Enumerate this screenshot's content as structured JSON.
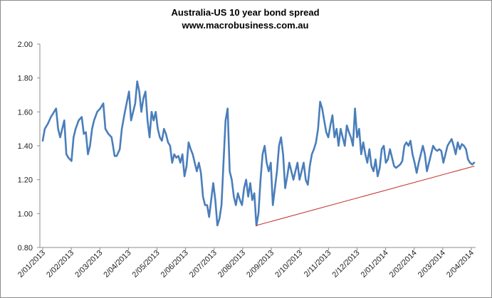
{
  "chart_data": {
    "type": "line",
    "title": "Australia-US 10 year bond spread",
    "subtitle": "www.macrobusiness.com.au",
    "xlabel": "",
    "ylabel": "",
    "ylim": [
      0.8,
      2.0
    ],
    "yticks": [
      "0.80",
      "1.00",
      "1.20",
      "1.40",
      "1.60",
      "1.80",
      "2.00"
    ],
    "ytick_values": [
      0.8,
      1.0,
      1.2,
      1.4,
      1.6,
      1.8,
      2.0
    ],
    "categories": [
      "2/01/2013",
      "2/02/2013",
      "2/03/2013",
      "2/04/2013",
      "2/05/2013",
      "2/06/2013",
      "2/07/2013",
      "2/08/2013",
      "2/09/2013",
      "2/10/2013",
      "2/11/2013",
      "2/12/2013",
      "2/01/2014",
      "2/02/2014",
      "2/03/2014",
      "2/04/2014"
    ],
    "grid": false,
    "legend": "none",
    "series": [
      {
        "name": "Australia-US 10 year bond spread",
        "color": "#4a7ebb",
        "values": [
          [
            0.0,
            1.43
          ],
          [
            0.2,
            1.5
          ],
          [
            0.5,
            1.53
          ],
          [
            0.8,
            1.57
          ],
          [
            1.1,
            1.6
          ],
          [
            1.3,
            1.62
          ],
          [
            1.5,
            1.5
          ],
          [
            1.7,
            1.45
          ],
          [
            1.9,
            1.5
          ],
          [
            2.1,
            1.55
          ],
          [
            2.3,
            1.35
          ],
          [
            2.5,
            1.33
          ],
          [
            2.8,
            1.31
          ],
          [
            3.0,
            1.45
          ],
          [
            3.2,
            1.5
          ],
          [
            3.5,
            1.55
          ],
          [
            3.8,
            1.57
          ],
          [
            4.0,
            1.47
          ],
          [
            4.2,
            1.48
          ],
          [
            4.4,
            1.35
          ],
          [
            4.6,
            1.4
          ],
          [
            4.8,
            1.5
          ],
          [
            5.0,
            1.55
          ],
          [
            5.3,
            1.6
          ],
          [
            5.6,
            1.62
          ],
          [
            5.9,
            1.65
          ],
          [
            6.1,
            1.5
          ],
          [
            6.4,
            1.47
          ],
          [
            6.7,
            1.45
          ],
          [
            7.0,
            1.34
          ],
          [
            7.2,
            1.34
          ],
          [
            7.5,
            1.38
          ],
          [
            7.7,
            1.5
          ],
          [
            8.0,
            1.6
          ],
          [
            8.2,
            1.66
          ],
          [
            8.4,
            1.72
          ],
          [
            8.6,
            1.55
          ],
          [
            8.8,
            1.6
          ],
          [
            9.0,
            1.65
          ],
          [
            9.2,
            1.78
          ],
          [
            9.4,
            1.72
          ],
          [
            9.6,
            1.6
          ],
          [
            9.8,
            1.68
          ],
          [
            10.0,
            1.72
          ],
          [
            10.2,
            1.55
          ],
          [
            10.4,
            1.45
          ],
          [
            10.6,
            1.6
          ],
          [
            10.8,
            1.55
          ],
          [
            11.0,
            1.6
          ],
          [
            11.2,
            1.5
          ],
          [
            11.4,
            1.45
          ],
          [
            11.6,
            1.43
          ],
          [
            11.8,
            1.5
          ],
          [
            12.0,
            1.47
          ],
          [
            12.2,
            1.42
          ],
          [
            12.4,
            1.4
          ],
          [
            12.6,
            1.3
          ],
          [
            12.8,
            1.35
          ],
          [
            13.0,
            1.33
          ],
          [
            13.2,
            1.34
          ],
          [
            13.4,
            1.3
          ],
          [
            13.6,
            1.35
          ],
          [
            13.8,
            1.22
          ],
          [
            14.0,
            1.28
          ],
          [
            14.2,
            1.42
          ],
          [
            14.4,
            1.38
          ],
          [
            14.6,
            1.35
          ],
          [
            14.8,
            1.3
          ],
          [
            15.0,
            1.25
          ],
          [
            15.2,
            1.3
          ],
          [
            15.4,
            1.24
          ],
          [
            15.6,
            1.1
          ],
          [
            15.8,
            1.05
          ],
          [
            16.0,
            1.05
          ],
          [
            16.2,
            0.98
          ],
          [
            16.4,
            1.08
          ],
          [
            16.6,
            1.18
          ],
          [
            16.8,
            1.08
          ],
          [
            17.0,
            0.93
          ],
          [
            17.2,
            0.97
          ],
          [
            17.4,
            1.05
          ],
          [
            17.6,
            1.3
          ],
          [
            17.8,
            1.55
          ],
          [
            18.0,
            1.62
          ],
          [
            18.2,
            1.25
          ],
          [
            18.4,
            1.2
          ],
          [
            18.6,
            1.1
          ],
          [
            18.8,
            1.05
          ],
          [
            19.0,
            1.12
          ],
          [
            19.2,
            1.08
          ],
          [
            19.4,
            1.05
          ],
          [
            19.6,
            1.15
          ],
          [
            19.8,
            1.2
          ],
          [
            20.0,
            1.1
          ],
          [
            20.2,
            1.18
          ],
          [
            20.4,
            1.08
          ],
          [
            20.6,
            1.12
          ],
          [
            20.8,
            0.93
          ],
          [
            21.0,
            1.0
          ],
          [
            21.2,
            1.2
          ],
          [
            21.4,
            1.35
          ],
          [
            21.6,
            1.4
          ],
          [
            21.8,
            1.3
          ],
          [
            22.0,
            1.25
          ],
          [
            22.2,
            1.3
          ],
          [
            22.4,
            1.05
          ],
          [
            22.6,
            1.15
          ],
          [
            22.8,
            1.25
          ],
          [
            23.0,
            1.4
          ],
          [
            23.2,
            1.45
          ],
          [
            23.4,
            1.35
          ],
          [
            23.6,
            1.15
          ],
          [
            23.8,
            1.22
          ],
          [
            24.0,
            1.3
          ],
          [
            24.2,
            1.25
          ],
          [
            24.4,
            1.2
          ],
          [
            24.6,
            1.25
          ],
          [
            24.8,
            1.3
          ],
          [
            25.0,
            1.2
          ],
          [
            25.2,
            1.25
          ],
          [
            25.4,
            1.3
          ],
          [
            25.6,
            1.2
          ],
          [
            25.8,
            1.17
          ],
          [
            26.0,
            1.28
          ],
          [
            26.2,
            1.35
          ],
          [
            26.4,
            1.38
          ],
          [
            26.6,
            1.42
          ],
          [
            26.8,
            1.5
          ],
          [
            27.0,
            1.66
          ],
          [
            27.2,
            1.62
          ],
          [
            27.4,
            1.55
          ],
          [
            27.6,
            1.48
          ],
          [
            27.8,
            1.45
          ],
          [
            28.0,
            1.52
          ],
          [
            28.2,
            1.58
          ],
          [
            28.4,
            1.45
          ],
          [
            28.6,
            1.5
          ],
          [
            28.8,
            1.4
          ],
          [
            29.0,
            1.5
          ],
          [
            29.2,
            1.45
          ],
          [
            29.4,
            1.4
          ],
          [
            29.6,
            1.52
          ],
          [
            29.8,
            1.48
          ],
          [
            30.0,
            1.45
          ],
          [
            30.2,
            1.4
          ],
          [
            30.4,
            1.62
          ],
          [
            30.6,
            1.45
          ],
          [
            30.8,
            1.5
          ],
          [
            31.0,
            1.35
          ],
          [
            31.2,
            1.42
          ],
          [
            31.4,
            1.35
          ],
          [
            31.6,
            1.3
          ],
          [
            31.8,
            1.38
          ],
          [
            32.0,
            1.28
          ],
          [
            32.2,
            1.25
          ],
          [
            32.4,
            1.32
          ],
          [
            32.6,
            1.22
          ],
          [
            32.8,
            1.27
          ],
          [
            33.0,
            1.38
          ],
          [
            33.2,
            1.4
          ],
          [
            33.4,
            1.3
          ],
          [
            33.6,
            1.32
          ],
          [
            33.8,
            1.38
          ],
          [
            34.0,
            1.33
          ],
          [
            34.2,
            1.28
          ],
          [
            34.4,
            1.27
          ],
          [
            34.6,
            1.28
          ],
          [
            34.8,
            1.29
          ],
          [
            35.0,
            1.31
          ],
          [
            35.2,
            1.4
          ],
          [
            35.4,
            1.42
          ],
          [
            35.6,
            1.4
          ],
          [
            35.8,
            1.43
          ],
          [
            36.0,
            1.35
          ],
          [
            36.2,
            1.3
          ],
          [
            36.4,
            1.24
          ],
          [
            36.6,
            1.3
          ],
          [
            36.8,
            1.35
          ],
          [
            37.0,
            1.4
          ],
          [
            37.2,
            1.35
          ],
          [
            37.4,
            1.25
          ],
          [
            37.6,
            1.3
          ],
          [
            37.8,
            1.35
          ],
          [
            38.0,
            1.4
          ],
          [
            38.2,
            1.38
          ],
          [
            38.4,
            1.37
          ],
          [
            38.6,
            1.38
          ],
          [
            38.8,
            1.37
          ],
          [
            39.0,
            1.3
          ],
          [
            39.2,
            1.35
          ],
          [
            39.4,
            1.4
          ],
          [
            39.6,
            1.42
          ],
          [
            39.8,
            1.44
          ],
          [
            40.0,
            1.4
          ],
          [
            40.2,
            1.35
          ],
          [
            40.4,
            1.42
          ],
          [
            40.6,
            1.38
          ],
          [
            40.8,
            1.41
          ],
          [
            41.0,
            1.4
          ],
          [
            41.2,
            1.38
          ],
          [
            41.4,
            1.32
          ],
          [
            41.6,
            1.3
          ],
          [
            41.8,
            1.29
          ],
          [
            42.0,
            1.3
          ]
        ]
      },
      {
        "name": "Trend line",
        "color": "#c0312c",
        "values": [
          [
            20.8,
            0.93
          ],
          [
            42.0,
            1.28
          ]
        ]
      }
    ]
  }
}
